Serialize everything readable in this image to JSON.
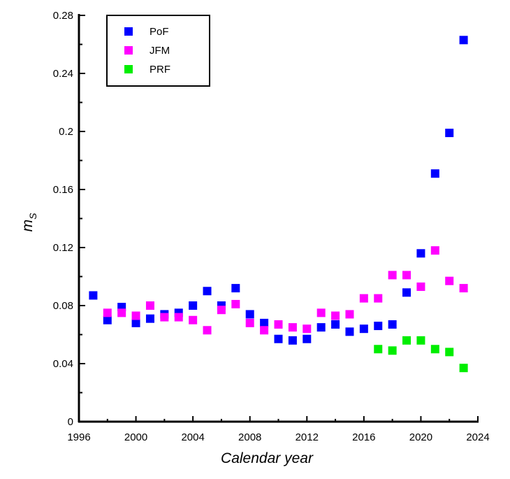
{
  "chart_data": {
    "type": "scatter",
    "title": "",
    "xlabel": "Calendar year",
    "ylabel_main": "m",
    "ylabel_sub": "S",
    "xlim": [
      1996,
      2024
    ],
    "ylim": [
      0,
      0.28
    ],
    "xticks": [
      1996,
      2000,
      2004,
      2008,
      2012,
      2016,
      2020,
      2024
    ],
    "yticks": [
      0,
      0.04,
      0.08,
      0.12,
      0.16,
      0.2,
      0.24,
      0.28
    ],
    "ytick_labels": [
      "0",
      "0.04",
      "0.08",
      "0.12",
      "0.16",
      "0.2",
      "0.24",
      "0.28"
    ],
    "legend_position": "top-left",
    "series": [
      {
        "name": "PoF",
        "color": "#0000ff",
        "x": [
          1997,
          1998,
          1999,
          2000,
          2001,
          2002,
          2003,
          2004,
          2005,
          2006,
          2007,
          2008,
          2009,
          2010,
          2011,
          2012,
          2013,
          2014,
          2015,
          2016,
          2017,
          2018,
          2019,
          2020,
          2021,
          2022,
          2023
        ],
        "y": [
          0.087,
          0.07,
          0.079,
          0.068,
          0.071,
          0.074,
          0.075,
          0.08,
          0.09,
          0.08,
          0.092,
          0.074,
          0.068,
          0.057,
          0.056,
          0.057,
          0.065,
          0.067,
          0.062,
          0.064,
          0.066,
          0.067,
          0.089,
          0.116,
          0.171,
          0.199,
          0.263
        ]
      },
      {
        "name": "JFM",
        "color": "#ff00ff",
        "x": [
          1998,
          1999,
          2000,
          2001,
          2002,
          2003,
          2004,
          2005,
          2006,
          2007,
          2008,
          2009,
          2010,
          2011,
          2012,
          2013,
          2014,
          2015,
          2016,
          2017,
          2018,
          2019,
          2020,
          2021,
          2022,
          2023
        ],
        "y": [
          0.075,
          0.075,
          0.073,
          0.08,
          0.072,
          0.072,
          0.07,
          0.063,
          0.077,
          0.081,
          0.068,
          0.063,
          0.067,
          0.065,
          0.064,
          0.075,
          0.073,
          0.074,
          0.085,
          0.085,
          0.101,
          0.101,
          0.093,
          0.118,
          0.097,
          0.092
        ]
      },
      {
        "name": "PRF",
        "color": "#00ee00",
        "x": [
          2017,
          2018,
          2019,
          2020,
          2021,
          2022,
          2023
        ],
        "y": [
          0.05,
          0.049,
          0.056,
          0.056,
          0.05,
          0.048,
          0.037
        ]
      }
    ]
  }
}
